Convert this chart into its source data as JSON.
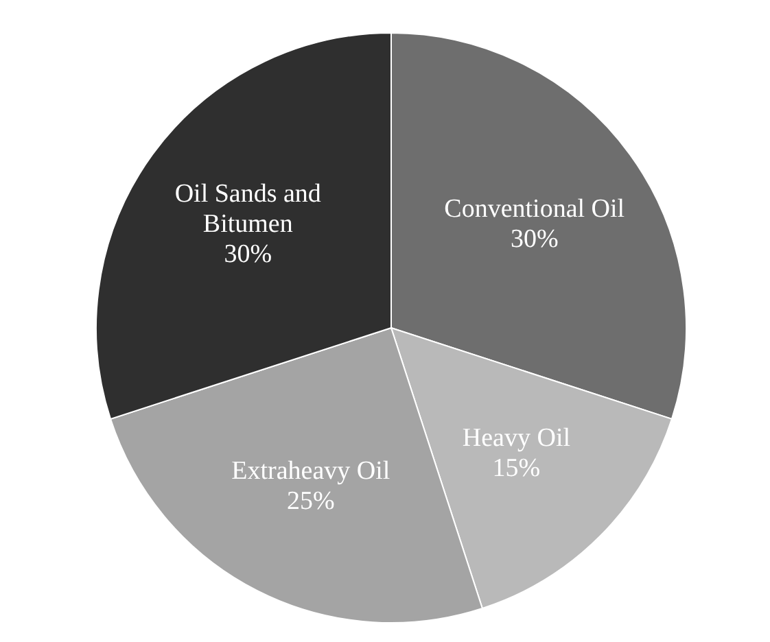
{
  "chart_data": {
    "type": "pie",
    "categories": [
      "Conventional Oil",
      "Heavy Oil",
      "Extraheavy Oil",
      "Oil Sands and Bitumen"
    ],
    "values": [
      30,
      15,
      25,
      30
    ],
    "colors": [
      "#6e6e6e",
      "#b9b9b9",
      "#a4a4a4",
      "#2f2f2f"
    ],
    "value_labels": [
      "30%",
      "15%",
      "25%",
      "30%"
    ],
    "legend": false
  }
}
